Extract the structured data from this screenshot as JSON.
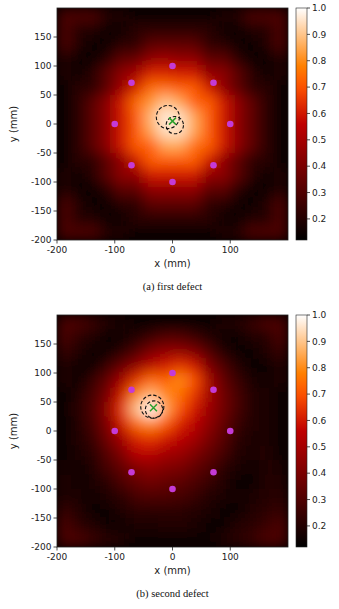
{
  "chart_data": [
    {
      "type": "heatmap",
      "title": "(a) first defect",
      "x_label": "x (mm)",
      "y_label": "y (mm)",
      "xlim": [
        -200,
        200
      ],
      "ylim": [
        -200,
        200
      ],
      "xticks": [
        -200,
        -100,
        0,
        100
      ],
      "yticks": [
        -200,
        -150,
        -100,
        -50,
        0,
        50,
        100,
        150
      ],
      "cell_x": [
        -187.5,
        -162.5,
        -137.5,
        -112.5,
        -87.5,
        -62.5,
        -37.5,
        -12.5,
        12.5,
        37.5,
        62.5,
        87.5,
        112.5,
        137.5,
        162.5,
        187.5
      ],
      "cell_y": [
        187.5,
        162.5,
        137.5,
        112.5,
        87.5,
        62.5,
        37.5,
        12.5,
        -12.5,
        -37.5,
        -62.5,
        -87.5,
        -112.5,
        -137.5,
        -162.5,
        -187.5
      ],
      "cells": [
        [
          0.3,
          0.3,
          0.3,
          0.2,
          0.2,
          0.15,
          0.15,
          0.15,
          0.15,
          0.15,
          0.15,
          0.2,
          0.2,
          0.3,
          0.3,
          0.3
        ],
        [
          0.3,
          0.2,
          0.2,
          0.15,
          0.15,
          0.22,
          0.22,
          0.22,
          0.22,
          0.22,
          0.22,
          0.15,
          0.15,
          0.2,
          0.2,
          0.3
        ],
        [
          0.3,
          0.2,
          0.15,
          0.15,
          0.22,
          0.22,
          0.33,
          0.33,
          0.33,
          0.33,
          0.22,
          0.22,
          0.15,
          0.15,
          0.2,
          0.3
        ],
        [
          0.2,
          0.15,
          0.15,
          0.22,
          0.33,
          0.35,
          0.45,
          0.48,
          0.45,
          0.45,
          0.33,
          0.33,
          0.22,
          0.15,
          0.15,
          0.2
        ],
        [
          0.2,
          0.15,
          0.22,
          0.33,
          0.45,
          0.5,
          0.62,
          0.62,
          0.6,
          0.6,
          0.45,
          0.45,
          0.33,
          0.22,
          0.15,
          0.2
        ],
        [
          0.15,
          0.22,
          0.22,
          0.33,
          0.48,
          0.62,
          0.75,
          0.75,
          0.72,
          0.72,
          0.6,
          0.45,
          0.33,
          0.22,
          0.22,
          0.15
        ],
        [
          0.15,
          0.22,
          0.33,
          0.45,
          0.6,
          0.75,
          0.82,
          0.9,
          0.85,
          0.72,
          0.72,
          0.6,
          0.45,
          0.33,
          0.22,
          0.15
        ],
        [
          0.15,
          0.22,
          0.33,
          0.45,
          0.6,
          0.72,
          0.88,
          0.97,
          0.95,
          0.85,
          0.72,
          0.6,
          0.45,
          0.33,
          0.22,
          0.15
        ],
        [
          0.15,
          0.22,
          0.33,
          0.45,
          0.6,
          0.72,
          0.85,
          0.95,
          0.95,
          0.85,
          0.72,
          0.6,
          0.45,
          0.33,
          0.22,
          0.15
        ],
        [
          0.15,
          0.22,
          0.33,
          0.45,
          0.6,
          0.72,
          0.72,
          0.85,
          0.85,
          0.75,
          0.72,
          0.6,
          0.45,
          0.33,
          0.22,
          0.15
        ],
        [
          0.15,
          0.22,
          0.22,
          0.33,
          0.45,
          0.6,
          0.72,
          0.72,
          0.72,
          0.72,
          0.6,
          0.45,
          0.33,
          0.22,
          0.22,
          0.15
        ],
        [
          0.2,
          0.15,
          0.22,
          0.33,
          0.45,
          0.45,
          0.6,
          0.6,
          0.6,
          0.6,
          0.45,
          0.45,
          0.33,
          0.22,
          0.15,
          0.2
        ],
        [
          0.2,
          0.15,
          0.15,
          0.22,
          0.33,
          0.33,
          0.45,
          0.45,
          0.45,
          0.45,
          0.33,
          0.33,
          0.22,
          0.15,
          0.15,
          0.2
        ],
        [
          0.3,
          0.2,
          0.15,
          0.15,
          0.22,
          0.22,
          0.33,
          0.33,
          0.33,
          0.33,
          0.22,
          0.22,
          0.15,
          0.15,
          0.2,
          0.3
        ],
        [
          0.3,
          0.2,
          0.2,
          0.15,
          0.15,
          0.22,
          0.22,
          0.22,
          0.22,
          0.22,
          0.22,
          0.15,
          0.15,
          0.2,
          0.2,
          0.3
        ],
        [
          0.3,
          0.3,
          0.3,
          0.2,
          0.2,
          0.15,
          0.15,
          0.15,
          0.15,
          0.15,
          0.15,
          0.2,
          0.2,
          0.3,
          0.3,
          0.3
        ]
      ],
      "colorbar": {
        "range": [
          0.12,
          1.0
        ],
        "ticks": [
          0.2,
          0.3,
          0.4,
          0.5,
          0.6,
          0.7,
          0.8,
          0.9,
          {
            "value": 1.0,
            "label": "1.0"
          }
        ]
      },
      "sensors": {
        "x": [
          0,
          71,
          100,
          71,
          0,
          -71,
          -100,
          -71
        ],
        "y": [
          100,
          71,
          0,
          -71,
          -100,
          -71,
          0,
          71
        ],
        "color": "#c43ad6",
        "marker": "circle"
      },
      "circles": {
        "x": [
          -8,
          4
        ],
        "y": [
          12,
          -2
        ],
        "r": [
          20,
          15
        ],
        "color": "#111111",
        "line_style": "dashed"
      },
      "estimate": {
        "x": [
          0
        ],
        "y": [
          5
        ],
        "color": "#2ca02c",
        "marker": "x"
      }
    },
    {
      "type": "heatmap",
      "title": "(b) second defect",
      "x_label": "x (mm)",
      "y_label": "y (mm)",
      "xlim": [
        -200,
        200
      ],
      "ylim": [
        -200,
        200
      ],
      "xticks": [
        -200,
        -100,
        0,
        100
      ],
      "yticks": [
        -200,
        -150,
        -100,
        -50,
        0,
        50,
        100,
        150
      ],
      "cell_x": [
        -187.5,
        -162.5,
        -137.5,
        -112.5,
        -87.5,
        -62.5,
        -37.5,
        -12.5,
        12.5,
        37.5,
        62.5,
        87.5,
        112.5,
        137.5,
        162.5,
        187.5
      ],
      "cell_y": [
        187.5,
        162.5,
        137.5,
        112.5,
        87.5,
        62.5,
        37.5,
        12.5,
        -12.5,
        -37.5,
        -62.5,
        -87.5,
        -112.5,
        -137.5,
        -162.5,
        -187.5
      ],
      "cells": [
        [
          0.3,
          0.3,
          0.25,
          0.2,
          0.18,
          0.15,
          0.15,
          0.15,
          0.15,
          0.15,
          0.15,
          0.2,
          0.2,
          0.25,
          0.3,
          0.3
        ],
        [
          0.3,
          0.22,
          0.2,
          0.15,
          0.15,
          0.2,
          0.25,
          0.3,
          0.3,
          0.25,
          0.2,
          0.15,
          0.15,
          0.2,
          0.2,
          0.3
        ],
        [
          0.25,
          0.2,
          0.15,
          0.15,
          0.22,
          0.3,
          0.4,
          0.45,
          0.45,
          0.4,
          0.3,
          0.2,
          0.15,
          0.15,
          0.2,
          0.25
        ],
        [
          0.2,
          0.15,
          0.15,
          0.25,
          0.35,
          0.45,
          0.55,
          0.6,
          0.65,
          0.6,
          0.4,
          0.3,
          0.2,
          0.15,
          0.15,
          0.2
        ],
        [
          0.2,
          0.15,
          0.25,
          0.35,
          0.5,
          0.65,
          0.75,
          0.72,
          0.8,
          0.7,
          0.5,
          0.35,
          0.25,
          0.18,
          0.15,
          0.2
        ],
        [
          0.15,
          0.2,
          0.28,
          0.4,
          0.6,
          0.8,
          0.88,
          0.8,
          0.75,
          0.65,
          0.5,
          0.38,
          0.28,
          0.2,
          0.18,
          0.15
        ],
        [
          0.15,
          0.22,
          0.3,
          0.45,
          0.65,
          0.9,
          1.0,
          0.85,
          0.7,
          0.6,
          0.48,
          0.38,
          0.28,
          0.2,
          0.18,
          0.15
        ],
        [
          0.15,
          0.2,
          0.28,
          0.42,
          0.6,
          0.75,
          0.8,
          0.72,
          0.62,
          0.55,
          0.45,
          0.35,
          0.25,
          0.2,
          0.18,
          0.15
        ],
        [
          0.15,
          0.2,
          0.25,
          0.38,
          0.5,
          0.62,
          0.65,
          0.6,
          0.55,
          0.5,
          0.4,
          0.32,
          0.22,
          0.18,
          0.18,
          0.15
        ],
        [
          0.15,
          0.18,
          0.22,
          0.32,
          0.42,
          0.55,
          0.55,
          0.5,
          0.48,
          0.42,
          0.35,
          0.28,
          0.2,
          0.18,
          0.2,
          0.15
        ],
        [
          0.18,
          0.15,
          0.2,
          0.28,
          0.35,
          0.42,
          0.45,
          0.42,
          0.4,
          0.35,
          0.3,
          0.22,
          0.18,
          0.15,
          0.2,
          0.18
        ],
        [
          0.2,
          0.15,
          0.18,
          0.22,
          0.3,
          0.35,
          0.38,
          0.35,
          0.33,
          0.3,
          0.25,
          0.2,
          0.15,
          0.15,
          0.2,
          0.2
        ],
        [
          0.2,
          0.18,
          0.15,
          0.2,
          0.22,
          0.28,
          0.3,
          0.3,
          0.28,
          0.25,
          0.2,
          0.18,
          0.15,
          0.18,
          0.2,
          0.22
        ],
        [
          0.25,
          0.2,
          0.15,
          0.15,
          0.2,
          0.22,
          0.22,
          0.22,
          0.22,
          0.2,
          0.18,
          0.15,
          0.15,
          0.2,
          0.22,
          0.25
        ],
        [
          0.3,
          0.22,
          0.2,
          0.15,
          0.15,
          0.18,
          0.18,
          0.2,
          0.2,
          0.18,
          0.15,
          0.15,
          0.2,
          0.22,
          0.25,
          0.3
        ],
        [
          0.3,
          0.3,
          0.25,
          0.22,
          0.2,
          0.15,
          0.15,
          0.15,
          0.15,
          0.15,
          0.15,
          0.2,
          0.22,
          0.25,
          0.3,
          0.3
        ]
      ],
      "colorbar": {
        "range": [
          0.12,
          1.0
        ],
        "ticks": [
          0.2,
          0.3,
          0.4,
          0.5,
          0.6,
          0.7,
          0.8,
          0.9,
          {
            "value": 1.0,
            "label": "1.0"
          }
        ]
      },
      "sensors": {
        "x": [
          0,
          71,
          100,
          71,
          0,
          -71,
          -100,
          -71
        ],
        "y": [
          100,
          71,
          0,
          -71,
          -100,
          -71,
          0,
          71
        ],
        "color": "#c43ad6",
        "marker": "circle"
      },
      "circles": {
        "x": [
          -35,
          -32
        ],
        "y": [
          42,
          37
        ],
        "r": [
          20,
          15
        ],
        "color": "#111111",
        "line_style": "dashed"
      },
      "estimate": {
        "x": [
          -33
        ],
        "y": [
          40
        ],
        "color": "#2ca02c",
        "marker": "x"
      }
    }
  ]
}
